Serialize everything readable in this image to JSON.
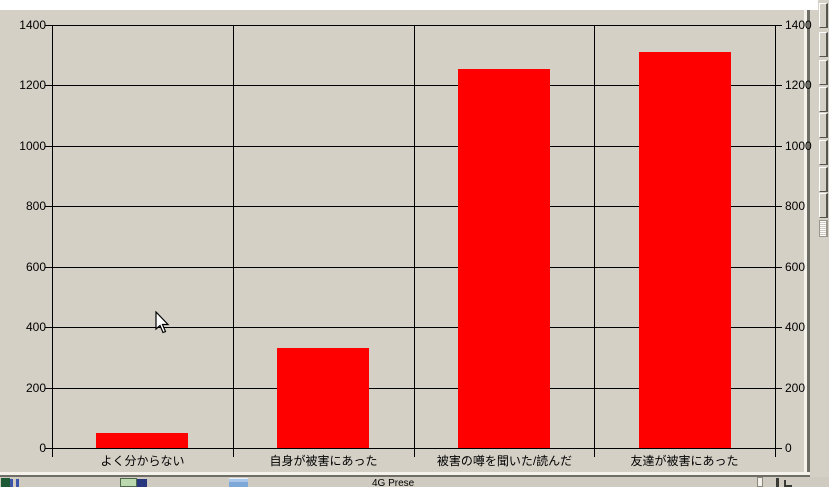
{
  "chart_data": {
    "type": "bar",
    "categories": [
      "よく分からない",
      "自身が被害にあった",
      "被害の噂を聞いた/読んだ",
      "友達が被害にあった"
    ],
    "values": [
      50,
      330,
      1255,
      1310
    ],
    "title": "",
    "xlabel": "",
    "ylabel": "",
    "ylim": [
      0,
      1400
    ],
    "yticks": [
      0,
      200,
      400,
      600,
      800,
      1000,
      1200,
      1400
    ],
    "bar_color": "#ff0000",
    "gridline_color": "#000000",
    "background_color": "#d4d0c6",
    "grid": true,
    "axes": "dual-y",
    "legend": "none"
  },
  "taskbar": {
    "fragment_text": "4G Prese",
    "icons": [
      {
        "name": "app-icon-left",
        "color": "#1d5a35"
      },
      {
        "name": "app-icon-green",
        "color": "#bcd8ae"
      },
      {
        "name": "app-icon-blue-dark",
        "color": "#28367d"
      },
      {
        "name": "app-icon-window",
        "color": "#a8c6e8"
      }
    ]
  },
  "window": {
    "right_edge_segments": 8
  }
}
